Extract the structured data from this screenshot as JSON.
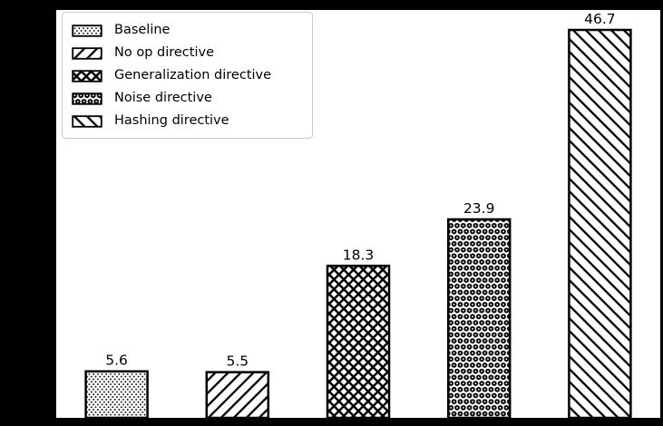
{
  "chart_data": {
    "type": "bar",
    "title": "",
    "xlabel": "",
    "ylabel": "",
    "categories": [
      "Baseline",
      "No op directive",
      "Generalization directive",
      "Noise directive",
      "Hashing directive"
    ],
    "values": [
      5.6,
      5.5,
      18.3,
      23.9,
      46.7
    ],
    "value_labels": [
      "5.6",
      "5.5",
      "18.3",
      "23.9",
      "46.7"
    ],
    "hatches": [
      "dots-small",
      "backslash",
      "cross-diagonal",
      "dots-large",
      "slash"
    ],
    "ylim": [
      0,
      49.1
    ],
    "grid": false,
    "legend_position": "upper left",
    "bar_fill_color": "#ffffff",
    "bar_edge_color": "#000000",
    "label_font_px": 15.5
  },
  "legend": {
    "items": [
      {
        "label": "Baseline",
        "pattern": "dots-small"
      },
      {
        "label": "No op directive",
        "pattern": "backslash"
      },
      {
        "label": "Generalization directive",
        "pattern": "cross-diagonal"
      },
      {
        "label": "Noise directive",
        "pattern": "dots-large"
      },
      {
        "label": "Hashing directive",
        "pattern": "slash"
      }
    ]
  },
  "colors": {
    "background_outside": "#000000",
    "plot_background": "#ffffff",
    "ink": "#000000",
    "legend_border": "#c9c9c9"
  }
}
